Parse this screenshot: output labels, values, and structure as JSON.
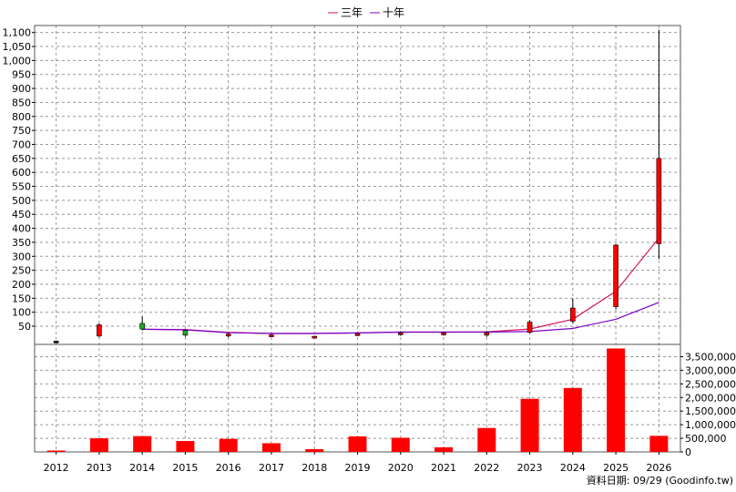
{
  "chart_data": {
    "type": "candlestick+line+bar",
    "legend": [
      {
        "label": "三年",
        "color": "#d4145a"
      },
      {
        "label": "十年",
        "color": "#7a00c8"
      }
    ],
    "categories": [
      "2012",
      "2013",
      "2014",
      "2015",
      "2016",
      "2017",
      "2018",
      "2019",
      "2020",
      "2021",
      "2022",
      "2023",
      "2024",
      "2025",
      "2026"
    ],
    "price_axis": {
      "ticks": [
        50,
        100,
        150,
        200,
        250,
        300,
        350,
        400,
        450,
        500,
        550,
        600,
        650,
        700,
        750,
        800,
        850,
        900,
        950,
        1000,
        1050,
        1100
      ],
      "tick_labels": [
        "50",
        "100",
        "150",
        "200",
        "250",
        "300",
        "350",
        "400",
        "450",
        "500",
        "550",
        "600",
        "650",
        "700",
        "750",
        "800",
        "850",
        "900",
        "950",
        "1,000",
        "1,050",
        "1,100"
      ],
      "ylim": [
        -15,
        1125
      ]
    },
    "candles": [
      {
        "year": "2012",
        "open": -5,
        "close": -3,
        "high": -2,
        "low": -6,
        "color": "#000000"
      },
      {
        "year": "2013",
        "open": 15,
        "close": 55,
        "high": 60,
        "low": 10,
        "color": "#ff0000"
      },
      {
        "year": "2014",
        "open": 60,
        "close": 40,
        "high": 85,
        "low": 35,
        "color": "#22aa22"
      },
      {
        "year": "2015",
        "open": 35,
        "close": 18,
        "high": 38,
        "low": 12,
        "color": "#22aa22"
      },
      {
        "year": "2016",
        "open": 15,
        "close": 22,
        "high": 28,
        "low": 10,
        "color": "#ff0000"
      },
      {
        "year": "2017",
        "open": 15,
        "close": 19,
        "high": 22,
        "low": 12,
        "color": "#ff0000"
      },
      {
        "year": "2018",
        "open": 13,
        "close": 14,
        "high": 16,
        "low": 11,
        "color": "#ff0000"
      },
      {
        "year": "2019",
        "open": 18,
        "close": 23,
        "high": 26,
        "low": 15,
        "color": "#ff0000"
      },
      {
        "year": "2020",
        "open": 20,
        "close": 26,
        "high": 32,
        "low": 16,
        "color": "#ff0000"
      },
      {
        "year": "2021",
        "open": 20,
        "close": 26,
        "high": 30,
        "low": 16,
        "color": "#ff0000"
      },
      {
        "year": "2022",
        "open": 18,
        "close": 27,
        "high": 33,
        "low": 12,
        "color": "#ff0000"
      },
      {
        "year": "2023",
        "open": 28,
        "close": 65,
        "high": 72,
        "low": 24,
        "color": "#ff0000"
      },
      {
        "year": "2024",
        "open": 68,
        "close": 115,
        "high": 150,
        "low": 60,
        "color": "#ff0000"
      },
      {
        "year": "2025",
        "open": 120,
        "close": 340,
        "high": 345,
        "low": 110,
        "color": "#ff0000"
      },
      {
        "year": "2026",
        "open": 345,
        "close": 650,
        "high": 1110,
        "low": 290,
        "color": "#ff0000"
      }
    ],
    "series": [
      {
        "name": "三年",
        "color": "#d4145a",
        "x": [
          "2014",
          "2015",
          "2016",
          "2017",
          "2018",
          "2019",
          "2020",
          "2021",
          "2022",
          "2023",
          "2024",
          "2025",
          "2026"
        ],
        "values": [
          39,
          38,
          28,
          24,
          24,
          26,
          29,
          29,
          30,
          40,
          75,
          175,
          365
        ]
      },
      {
        "name": "十年",
        "color": "#7a00c8",
        "x": [
          "2014",
          "2015",
          "2016",
          "2017",
          "2018",
          "2019",
          "2020",
          "2021",
          "2022",
          "2023",
          "2024",
          "2025",
          "2026"
        ],
        "values": [
          39,
          37,
          27,
          24,
          24,
          26,
          29,
          29,
          29,
          31,
          42,
          75,
          135
        ]
      }
    ],
    "volume": {
      "ticks": [
        0,
        500000,
        1000000,
        1500000,
        2000000,
        2500000,
        3000000,
        3500000
      ],
      "tick_labels": [
        "0",
        "500,000",
        "1,000,000",
        "1,500,000",
        "2,000,000",
        "2,500,000",
        "3,000,000",
        "3,500,000"
      ],
      "ylim": [
        0,
        3950000
      ],
      "values": [
        50000,
        500000,
        580000,
        400000,
        480000,
        320000,
        100000,
        570000,
        520000,
        170000,
        880000,
        1950000,
        2350000,
        3800000,
        590000
      ],
      "color": "#ff0000"
    },
    "grid": true
  },
  "footer": "資料日期: 09/29  (Goodinfo.tw)"
}
